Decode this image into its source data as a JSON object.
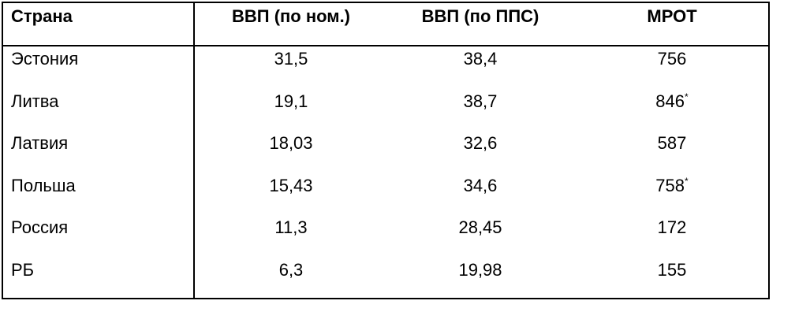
{
  "table": {
    "header": [
      "Страна",
      "ВВП (по ном.)",
      "ВВП (по ППС)",
      "МРОТ"
    ],
    "rows": [
      [
        "Эстония",
        "31,5",
        "38,4",
        {
          "text": "756"
        }
      ],
      [
        "Литва",
        "19,1",
        "38,7",
        {
          "text": "846",
          "note": "*"
        }
      ],
      [
        "Латвия",
        "18,03",
        "32,6",
        {
          "text": "587"
        }
      ],
      [
        "Польша",
        "15,43",
        "34,6",
        {
          "text": "758",
          "note": "*"
        }
      ],
      [
        "Россия",
        "11,3",
        "28,45",
        {
          "text": "172"
        }
      ],
      [
        "РБ",
        "6,3",
        "19,98",
        {
          "text": "155"
        }
      ]
    ]
  }
}
